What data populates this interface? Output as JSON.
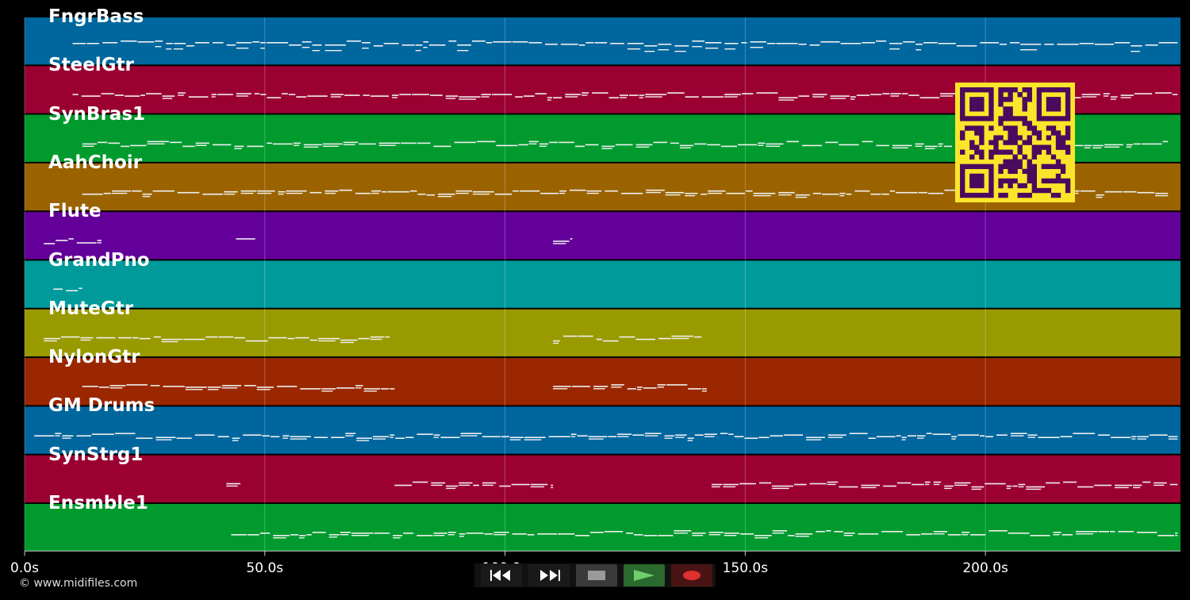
{
  "tracks": [
    {
      "name": "FngrBass",
      "color": "#00669e"
    },
    {
      "name": "SteelGtr",
      "color": "#9b0033"
    },
    {
      "name": "SynBras1",
      "color": "#009a2e"
    },
    {
      "name": "AahChoir",
      "color": "#9a6300"
    },
    {
      "name": "Flute",
      "color": "#63009a"
    },
    {
      "name": "GrandPno",
      "color": "#009a9a"
    },
    {
      "name": "MuteGtr",
      "color": "#999a00"
    },
    {
      "name": "NylonGtr",
      "color": "#9a2700"
    },
    {
      "name": "GM Drums",
      "color": "#00669e"
    },
    {
      "name": "SynStrg1",
      "color": "#9b0033"
    },
    {
      "name": "Ensmble1",
      "color": "#009a2e"
    }
  ],
  "timeline": {
    "ticks": [
      "0.0s",
      "50.0s",
      "100.0s",
      "150.0s",
      "200.0s"
    ],
    "tick_seconds": [
      0,
      50,
      100,
      150,
      200
    ],
    "max_seconds": 241
  },
  "credit": "© www.midifiles.com",
  "transport": {
    "rewind": {
      "icon": "rewind-icon",
      "color": "#1a1a1a"
    },
    "fast_forward": {
      "icon": "fast-forward-icon",
      "color": "#1a1a1a"
    },
    "stop": {
      "icon": "stop-icon",
      "color": "#3a3a3a"
    },
    "play": {
      "icon": "play-icon",
      "color": "#2a7a30"
    },
    "record": {
      "icon": "record-icon",
      "color": "#5a1a1a"
    }
  },
  "qr_code": {
    "icon": "qr-code-icon",
    "background": "#fbe52b",
    "foreground": "#4a0a5e"
  }
}
